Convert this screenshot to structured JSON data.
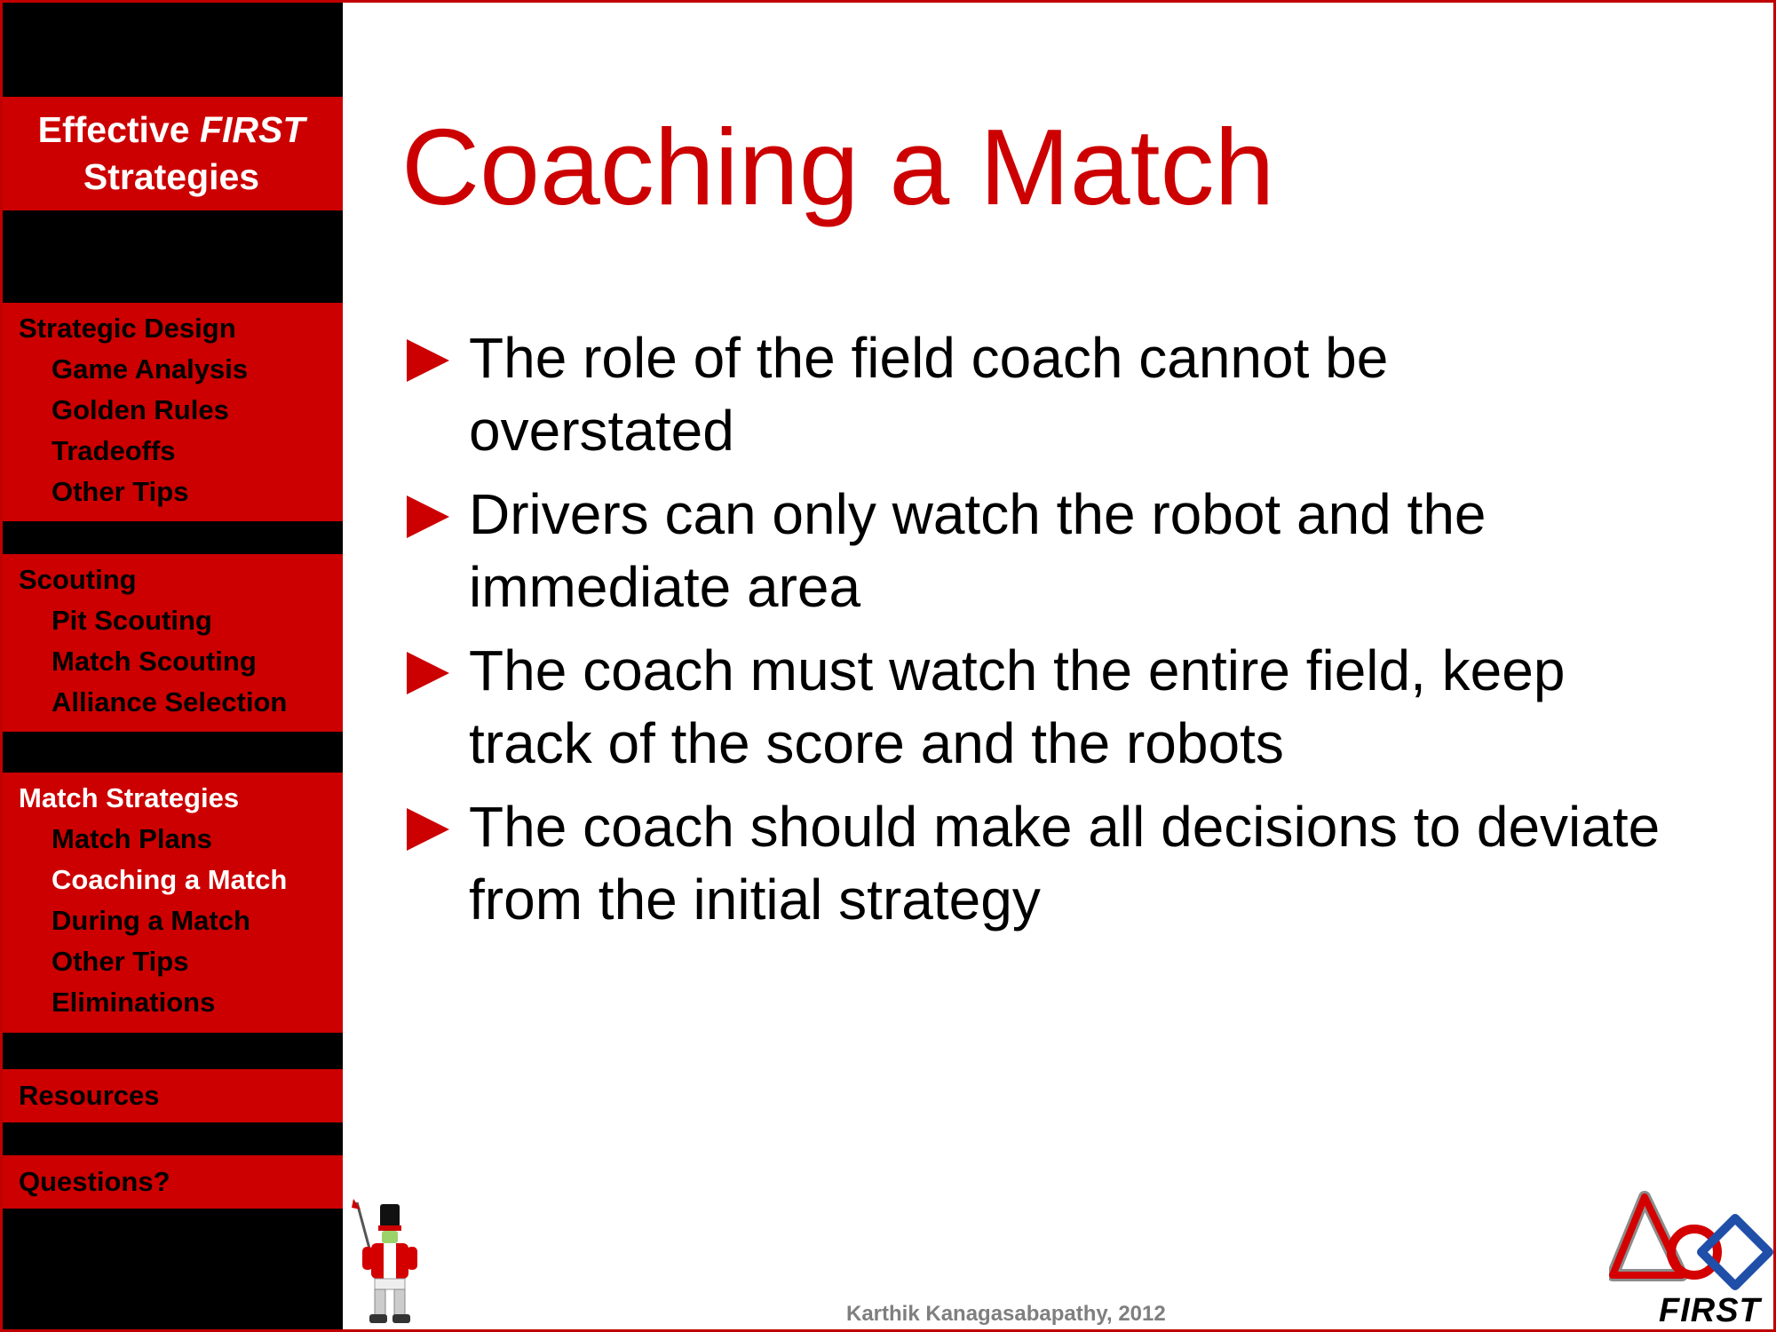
{
  "sidebar": {
    "title_line1_prefix": "Effective ",
    "title_line1_italic": "FIRST",
    "title_line2": "Strategies",
    "sections": [
      {
        "heading": "Strategic Design",
        "items": [
          "Game Analysis",
          "Golden Rules",
          "Tradeoffs",
          "Other Tips"
        ]
      },
      {
        "heading": "Scouting",
        "items": [
          "Pit Scouting",
          "Match Scouting",
          "Alliance Selection"
        ]
      },
      {
        "heading": "Match Strategies",
        "items": [
          "Match Plans",
          "Coaching a Match",
          "During a Match",
          "Other Tips",
          "Eliminations"
        ]
      },
      {
        "heading": "Resources"
      },
      {
        "heading": "Questions?"
      }
    ]
  },
  "slide": {
    "title": "Coaching a Match",
    "bullets": [
      "The role of the field coach cannot be overstated",
      "Drivers can only watch the robot and the immediate area",
      "The coach must watch the entire field, keep track of the score and the robots",
      "The coach should make all decisions to deviate from the initial strategy"
    ]
  },
  "footer": {
    "credit": "Karthik Kanagasabapathy, 2012"
  },
  "logo": {
    "wordmark": "FIRST",
    "icon": "first-logo-icon"
  },
  "mascot": {
    "icon": "robot-mascot-icon"
  },
  "colors": {
    "accent": "#cc0000",
    "sidebar_bg": "#000000",
    "active_text": "#ffffff",
    "footer_text": "#7f7f7f"
  }
}
